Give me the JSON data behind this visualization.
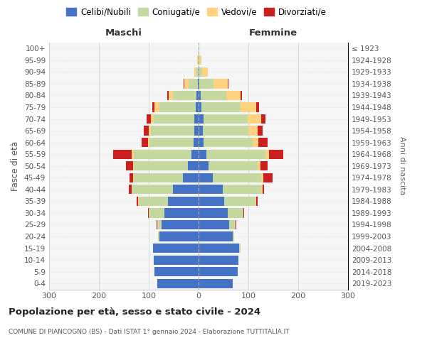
{
  "age_groups": [
    "0-4",
    "5-9",
    "10-14",
    "15-19",
    "20-24",
    "25-29",
    "30-34",
    "35-39",
    "40-44",
    "45-49",
    "50-54",
    "55-59",
    "60-64",
    "65-69",
    "70-74",
    "75-79",
    "80-84",
    "85-89",
    "90-94",
    "95-99",
    "100+"
  ],
  "birth_years": [
    "2019-2023",
    "2014-2018",
    "2009-2013",
    "2004-2008",
    "1999-2003",
    "1994-1998",
    "1989-1993",
    "1984-1988",
    "1979-1983",
    "1974-1978",
    "1969-1973",
    "1964-1968",
    "1959-1963",
    "1954-1958",
    "1949-1953",
    "1944-1948",
    "1939-1943",
    "1934-1938",
    "1929-1933",
    "1924-1928",
    "≤ 1923"
  ],
  "maschi": {
    "celibi": [
      83,
      88,
      90,
      92,
      78,
      75,
      68,
      62,
      52,
      32,
      22,
      15,
      10,
      8,
      8,
      6,
      4,
      2,
      0,
      0,
      0
    ],
    "coniugati": [
      0,
      0,
      0,
      0,
      4,
      8,
      32,
      58,
      82,
      98,
      108,
      115,
      88,
      88,
      82,
      72,
      48,
      18,
      4,
      2,
      0
    ],
    "vedovi": [
      0,
      0,
      0,
      0,
      0,
      0,
      0,
      1,
      1,
      1,
      2,
      4,
      3,
      4,
      6,
      10,
      8,
      8,
      4,
      1,
      0
    ],
    "divorziati": [
      0,
      0,
      0,
      0,
      0,
      1,
      2,
      3,
      5,
      8,
      14,
      38,
      14,
      10,
      8,
      5,
      3,
      2,
      0,
      0,
      0
    ]
  },
  "femmine": {
    "nubili": [
      68,
      78,
      80,
      82,
      68,
      62,
      58,
      52,
      48,
      28,
      20,
      16,
      10,
      8,
      10,
      6,
      4,
      2,
      1,
      0,
      0
    ],
    "coniugate": [
      0,
      0,
      0,
      2,
      4,
      12,
      32,
      62,
      78,
      98,
      98,
      118,
      98,
      92,
      88,
      78,
      52,
      28,
      6,
      2,
      0
    ],
    "vedove": [
      0,
      0,
      0,
      0,
      0,
      0,
      0,
      1,
      2,
      4,
      6,
      8,
      12,
      18,
      28,
      32,
      28,
      28,
      12,
      4,
      0
    ],
    "divorziate": [
      0,
      0,
      0,
      0,
      0,
      1,
      2,
      4,
      4,
      18,
      14,
      28,
      18,
      10,
      8,
      5,
      3,
      2,
      0,
      0,
      0
    ]
  },
  "colors": {
    "celibi": "#4472c4",
    "coniugati": "#c5d8a0",
    "vedovi": "#ffd280",
    "divorziati": "#cc1f1f"
  },
  "xlim": 300,
  "title": "Popolazione per età, sesso e stato civile - 2024",
  "subtitle": "COMUNE DI PIANCOGNO (BS) - Dati ISTAT 1° gennaio 2024 - Elaborazione TUTTITALIA.IT",
  "ylabel_left": "Fasce di età",
  "ylabel_right": "Anni di nascita",
  "legend_labels": [
    "Celibi/Nubili",
    "Coniugati/e",
    "Vedovi/e",
    "Divorziati/e"
  ]
}
